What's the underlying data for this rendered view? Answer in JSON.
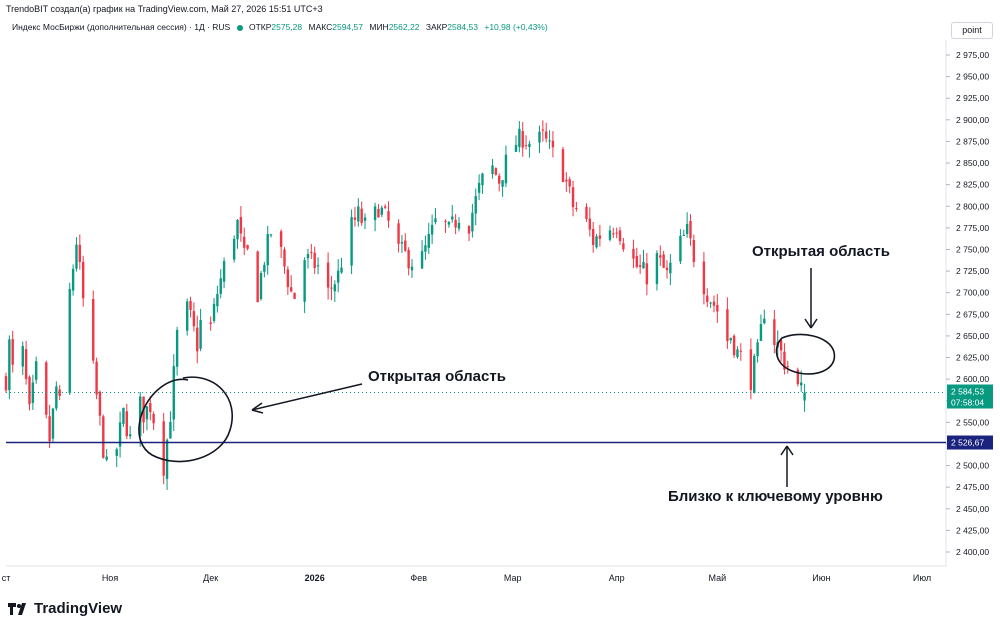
{
  "header": {
    "credit": "TrendoBIT создал(а) график на TradingView.com, Май 27, 2026 15:51 UTC+3",
    "instrument": "Индекс МосБиржи (дополнительная сессия) · 1Д · RUS",
    "open_label": "ОТКР",
    "open": "2575,28",
    "high_label": "МАКС",
    "high": "2594,57",
    "low_label": "МИН",
    "low": "2562,22",
    "close_label": "ЗАКР",
    "close": "2584,53",
    "change": "+10,98 (+0,43%)"
  },
  "price_scale_unit": "point",
  "brand": "TradingView",
  "annotations": {
    "open_area_left": "Открытая область",
    "open_area_right": "Открытая область",
    "near_key_level": "Близко к ключевому уровню"
  },
  "chart_data": {
    "type": "candlestick",
    "y_ticks": [
      "2 400,00",
      "2 425,00",
      "2 450,00",
      "2 475,00",
      "2 500,00",
      "2 525,00",
      "2 550,00",
      "2 575,00",
      "2 600,00",
      "2 625,00",
      "2 650,00",
      "2 675,00",
      "2 700,00",
      "2 725,00",
      "2 750,00",
      "2 775,00",
      "2 800,00",
      "2 825,00",
      "2 850,00",
      "2 875,00",
      "2 900,00",
      "2 925,00",
      "2 950,00",
      "2 975,00"
    ],
    "ylim": [
      2385,
      2990
    ],
    "x_ticks": [
      {
        "label": "ст",
        "date": "2025-10-01"
      },
      {
        "label": "Ноя",
        "date": "2025-11-01"
      },
      {
        "label": "Дек",
        "date": "2025-12-01"
      },
      {
        "label": "2026",
        "date": "2026-01-01"
      },
      {
        "label": "Фев",
        "date": "2026-02-01"
      },
      {
        "label": "Мар",
        "date": "2026-03-01"
      },
      {
        "label": "Апр",
        "date": "2026-04-01"
      },
      {
        "label": "Май",
        "date": "2026-05-01"
      },
      {
        "label": "Июн",
        "date": "2026-06-01"
      },
      {
        "label": "Июл",
        "date": "2026-07-01"
      }
    ],
    "key_level": {
      "value": 2526.67,
      "label": "2 526,67",
      "color": "#1a237e"
    },
    "last_price": {
      "value": 2584.53,
      "label": "2 584,53",
      "countdown": "07:58:04",
      "color": "#089981"
    },
    "up_color": "#089981",
    "down_color": "#f23645",
    "close_path": [
      [
        "2025-10-01",
        2600
      ],
      [
        "2025-10-02",
        2640
      ],
      [
        "2025-10-04",
        2580
      ],
      [
        "2025-10-06",
        2630
      ],
      [
        "2025-10-08",
        2560
      ],
      [
        "2025-10-10",
        2610
      ],
      [
        "2025-10-12",
        2570
      ],
      [
        "2025-10-14",
        2530
      ],
      [
        "2025-10-16",
        2590
      ],
      [
        "2025-10-18",
        2550
      ],
      [
        "2025-10-20",
        2700
      ],
      [
        "2025-10-22",
        2760
      ],
      [
        "2025-10-24",
        2690
      ],
      [
        "2025-10-26",
        2640
      ],
      [
        "2025-10-28",
        2580
      ],
      [
        "2025-10-30",
        2520
      ],
      [
        "2025-11-01",
        2475
      ],
      [
        "2025-11-03",
        2520
      ],
      [
        "2025-11-05",
        2560
      ],
      [
        "2025-11-07",
        2530
      ],
      [
        "2025-11-09",
        2580
      ],
      [
        "2025-11-11",
        2560
      ],
      [
        "2025-11-13",
        2570
      ],
      [
        "2025-11-15",
        2540
      ],
      [
        "2025-11-17",
        2500
      ],
      [
        "2025-11-19",
        2560
      ],
      [
        "2025-11-21",
        2650
      ],
      [
        "2025-11-23",
        2690
      ],
      [
        "2025-11-25",
        2670
      ],
      [
        "2025-11-27",
        2640
      ],
      [
        "2025-11-29",
        2690
      ],
      [
        "2025-12-01",
        2660
      ],
      [
        "2025-12-03",
        2700
      ],
      [
        "2025-12-05",
        2730
      ],
      [
        "2025-12-07",
        2760
      ],
      [
        "2025-12-09",
        2780
      ],
      [
        "2025-12-11",
        2740
      ],
      [
        "2025-12-13",
        2750
      ],
      [
        "2025-12-15",
        2700
      ],
      [
        "2025-12-17",
        2740
      ],
      [
        "2025-12-19",
        2770
      ],
      [
        "2025-12-21",
        2760
      ],
      [
        "2025-12-23",
        2730
      ],
      [
        "2025-12-25",
        2700
      ],
      [
        "2025-12-27",
        2690
      ],
      [
        "2025-12-29",
        2740
      ],
      [
        "2026-01-02",
        2730
      ],
      [
        "2026-01-05",
        2700
      ],
      [
        "2026-01-08",
        2720
      ],
      [
        "2026-01-11",
        2770
      ],
      [
        "2026-01-14",
        2790
      ],
      [
        "2026-01-17",
        2770
      ],
      [
        "2026-01-20",
        2800
      ],
      [
        "2026-01-23",
        2780
      ],
      [
        "2026-01-26",
        2750
      ],
      [
        "2026-01-29",
        2740
      ],
      [
        "2026-02-01",
        2730
      ],
      [
        "2026-02-04",
        2760
      ],
      [
        "2026-02-07",
        2790
      ],
      [
        "2026-02-10",
        2770
      ],
      [
        "2026-02-13",
        2790
      ],
      [
        "2026-02-16",
        2780
      ],
      [
        "2026-02-19",
        2820
      ],
      [
        "2026-02-22",
        2850
      ],
      [
        "2026-02-25",
        2830
      ],
      [
        "2026-03-01",
        2870
      ],
      [
        "2026-03-04",
        2880
      ],
      [
        "2026-03-07",
        2870
      ],
      [
        "2026-03-10",
        2880
      ],
      [
        "2026-03-13",
        2860
      ],
      [
        "2026-03-16",
        2840
      ],
      [
        "2026-03-19",
        2800
      ],
      [
        "2026-03-22",
        2790
      ],
      [
        "2026-03-25",
        2760
      ],
      [
        "2026-03-28",
        2770
      ],
      [
        "2026-04-01",
        2780
      ],
      [
        "2026-04-04",
        2750
      ],
      [
        "2026-04-07",
        2730
      ],
      [
        "2026-04-10",
        2720
      ],
      [
        "2026-04-13",
        2740
      ],
      [
        "2026-04-16",
        2720
      ],
      [
        "2026-04-19",
        2750
      ],
      [
        "2026-04-22",
        2770
      ],
      [
        "2026-04-25",
        2730
      ],
      [
        "2026-04-28",
        2700
      ],
      [
        "2026-05-01",
        2680
      ],
      [
        "2026-05-03",
        2640
      ],
      [
        "2026-05-05",
        2650
      ],
      [
        "2026-05-07",
        2630
      ],
      [
        "2026-05-09",
        2620
      ],
      [
        "2026-05-11",
        2600
      ],
      [
        "2026-05-13",
        2630
      ],
      [
        "2026-05-15",
        2680
      ],
      [
        "2026-05-17",
        2650
      ],
      [
        "2026-05-19",
        2640
      ],
      [
        "2026-05-21",
        2620
      ],
      [
        "2026-05-23",
        2610
      ],
      [
        "2026-05-25",
        2590
      ],
      [
        "2026-05-27",
        2584.53
      ]
    ]
  }
}
